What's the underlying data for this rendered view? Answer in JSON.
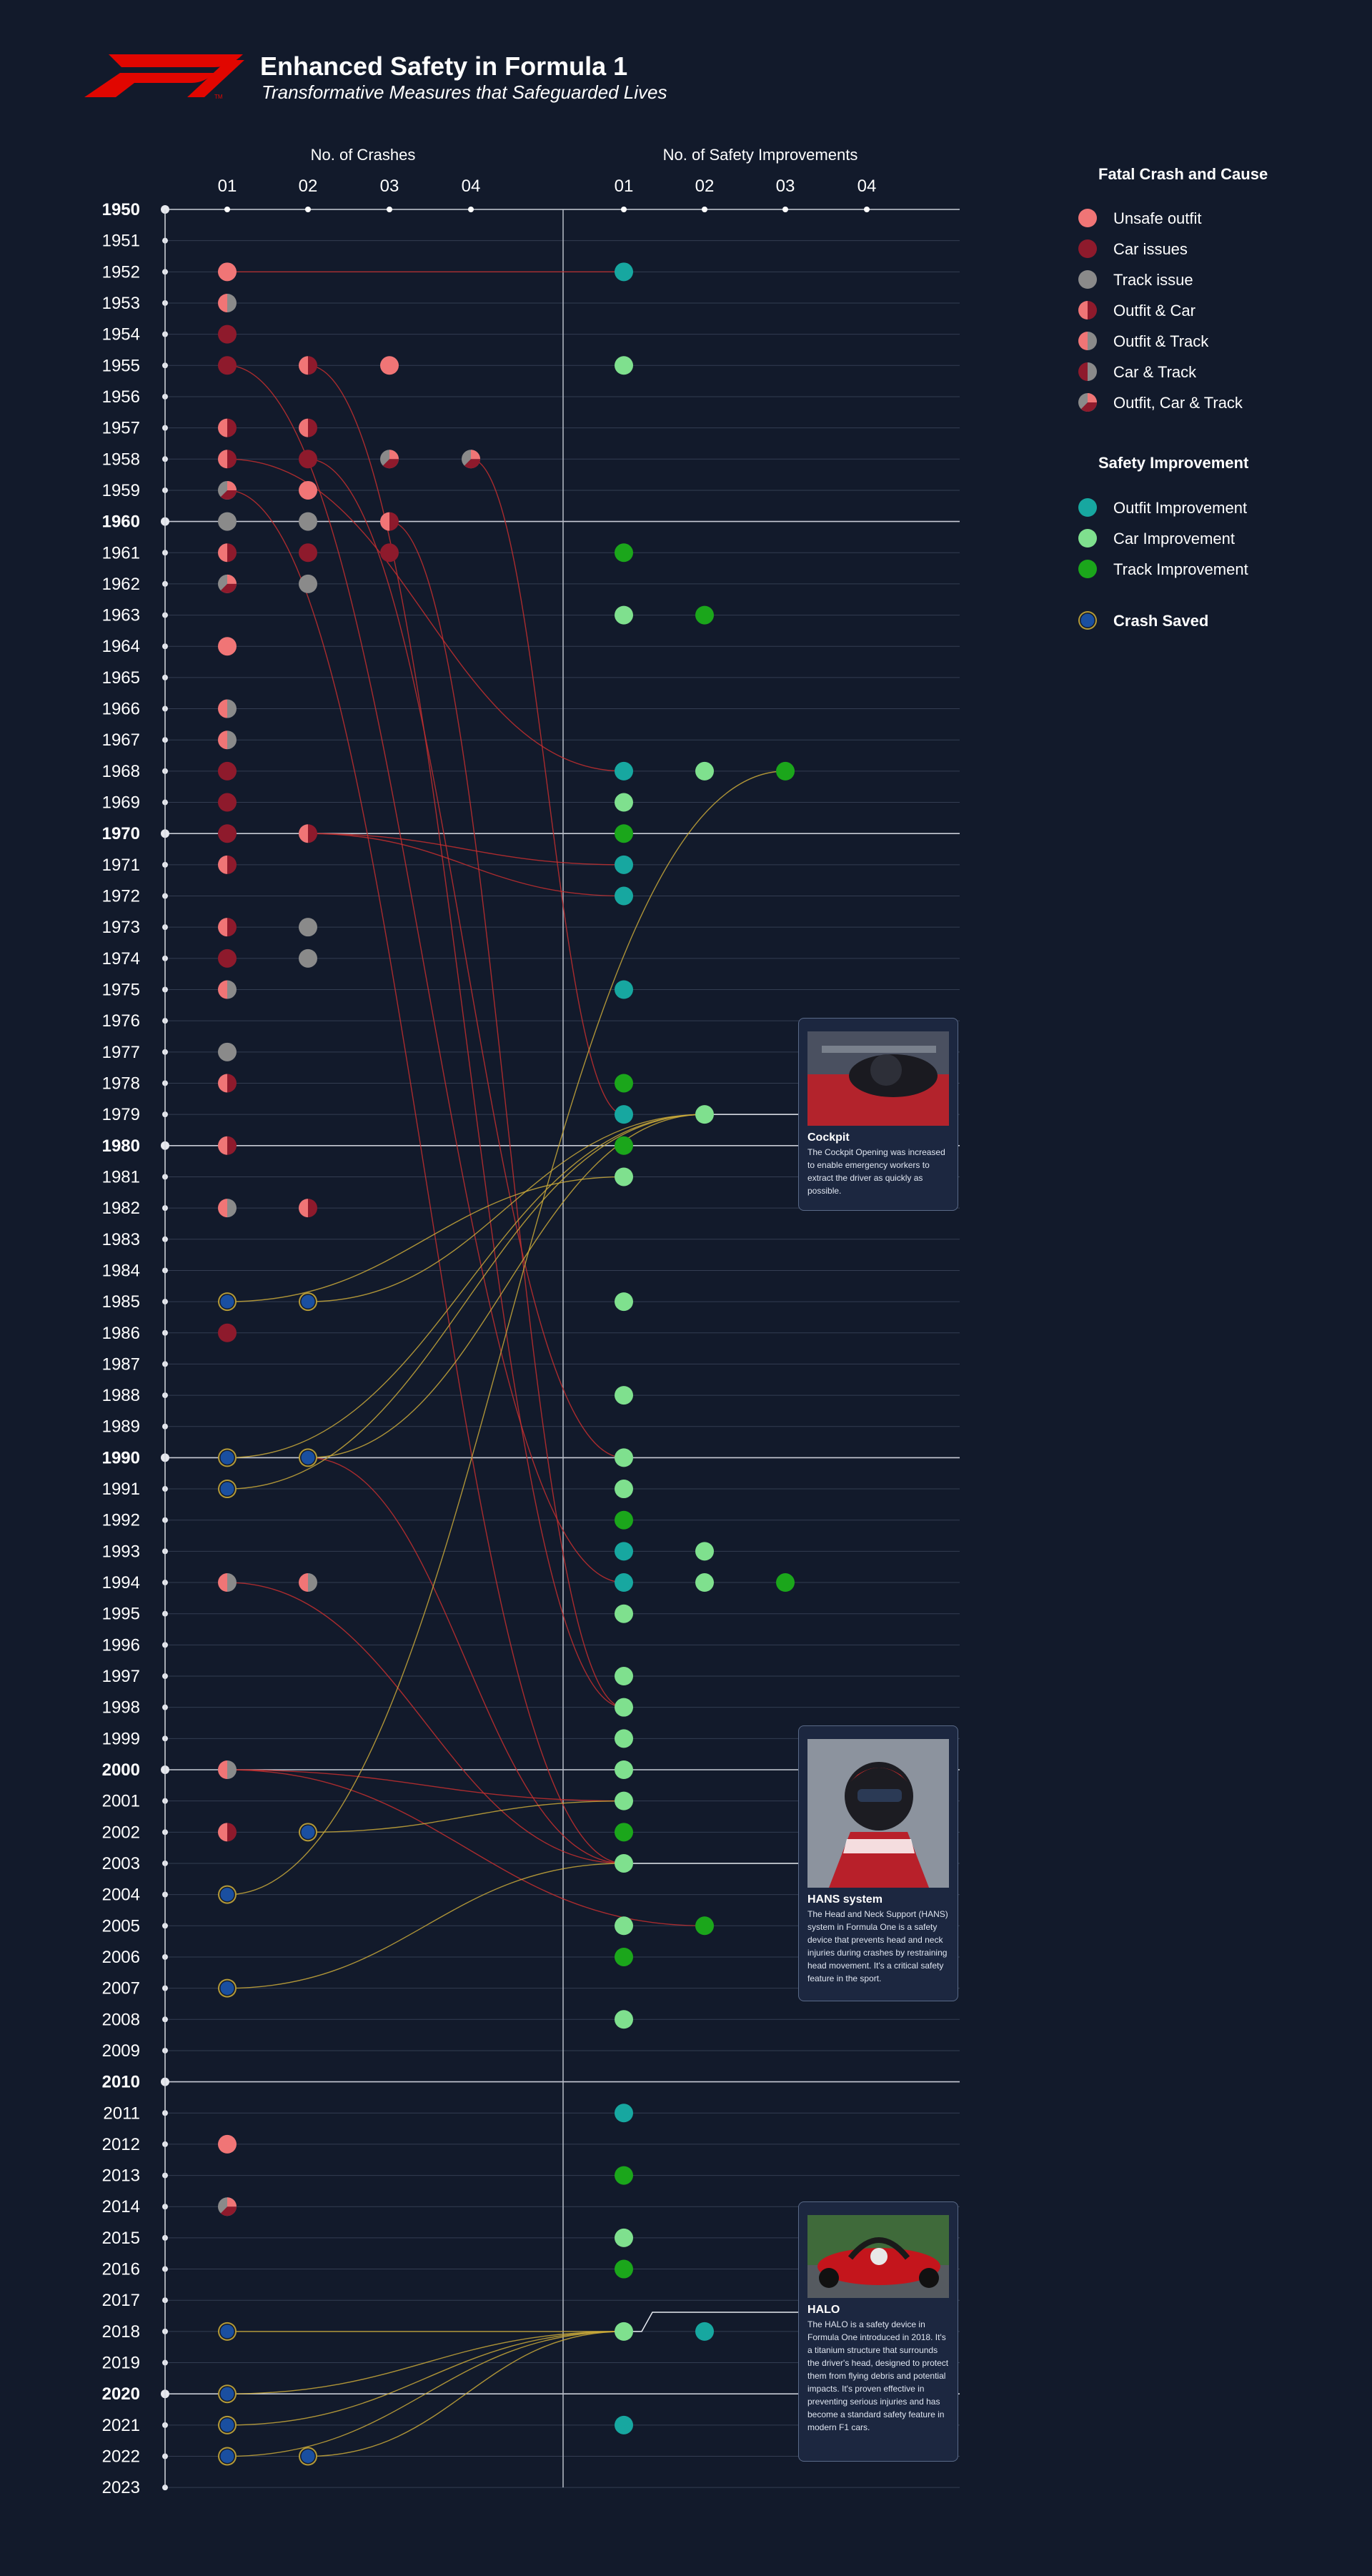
{
  "header": {
    "title": "Enhanced Safety in Formula 1",
    "subtitle": "Transformative Measures that Safeguarded Lives"
  },
  "columns": {
    "crashes_title": "No. of Crashes",
    "safety_title": "No. of Safety Improvements",
    "tick_labels": [
      "01",
      "02",
      "03",
      "04"
    ]
  },
  "legend": {
    "crash_title": "Fatal Crash and Cause",
    "crash_items": [
      {
        "key": "UO",
        "label": "Unsafe outfit"
      },
      {
        "key": "CI",
        "label": "Car issues"
      },
      {
        "key": "TI",
        "label": "Track issue"
      },
      {
        "key": "OC",
        "label": "Outfit & Car"
      },
      {
        "key": "OT",
        "label": "Outfit & Track"
      },
      {
        "key": "CT",
        "label": "Car & Track"
      },
      {
        "key": "OCT",
        "label": "Outfit, Car & Track"
      }
    ],
    "safety_title": "Safety Improvement",
    "safety_items": [
      {
        "key": "OI",
        "label": "Outfit Improvement"
      },
      {
        "key": "CAR",
        "label": "Car Improvement"
      },
      {
        "key": "TR",
        "label": "Track Improvement"
      }
    ],
    "saved_label": "Crash Saved"
  },
  "colors": {
    "background": "#121a2b",
    "unsafe_outfit": "#f07576",
    "car_issue": "#8e1a2c",
    "track_issue": "#8a8a8a",
    "outfit_improvement": "#17a7a0",
    "car_improvement": "#7fe08e",
    "track_improvement": "#1ba61b",
    "crash_saved_fill": "#1a4fa0",
    "crash_saved_ring": "#b49a38",
    "crash_link": "#c42f2f",
    "saved_link": "#c9a93a"
  },
  "cards": [
    {
      "title": "Cockpit",
      "text": "The Cockpit Opening was increased to enable emergency workers to extract the driver as quickly as possible."
    },
    {
      "title": "HANS system",
      "text": "The Head and Neck Support (HANS) system in Formula One is a safety device that prevents head and neck injuries during crashes by restraining head movement. It's a critical safety feature in the sport."
    },
    {
      "title": "HALO",
      "text": "The HALO is a safety device in Formula One introduced in 2018. It's a titanium structure that surrounds the driver's head, designed to protect them from flying debris and potential impacts. It's proven effective in preventing serious injuries and has become a standard safety feature in modern F1 cars."
    }
  ],
  "chart_data": {
    "type": "timeline-dot-matrix",
    "years": [
      1950,
      2023
    ],
    "decade_years": [
      1950,
      1960,
      1970,
      1980,
      1990,
      2000,
      2010,
      2020
    ],
    "crashes": [
      {
        "year": 1952,
        "types": [
          "UO"
        ]
      },
      {
        "year": 1953,
        "types": [
          "OT"
        ]
      },
      {
        "year": 1954,
        "types": [
          "CI"
        ]
      },
      {
        "year": 1955,
        "types": [
          "CI",
          "OC",
          "UO"
        ]
      },
      {
        "year": 1957,
        "types": [
          "OC",
          "OC"
        ]
      },
      {
        "year": 1958,
        "types": [
          "OC",
          "CI",
          "OCT",
          "OCT"
        ]
      },
      {
        "year": 1959,
        "types": [
          "OCT",
          "UO"
        ]
      },
      {
        "year": 1960,
        "types": [
          "TI",
          "TI",
          "OC"
        ]
      },
      {
        "year": 1961,
        "types": [
          "OC",
          "CI",
          "CI"
        ]
      },
      {
        "year": 1962,
        "types": [
          "OCT",
          "TI"
        ]
      },
      {
        "year": 1964,
        "types": [
          "UO"
        ]
      },
      {
        "year": 1966,
        "types": [
          "OT"
        ]
      },
      {
        "year": 1967,
        "types": [
          "OT"
        ]
      },
      {
        "year": 1968,
        "types": [
          "CI"
        ]
      },
      {
        "year": 1969,
        "types": [
          "CI"
        ]
      },
      {
        "year": 1970,
        "types": [
          "CI",
          "OC"
        ]
      },
      {
        "year": 1971,
        "types": [
          "OC"
        ]
      },
      {
        "year": 1973,
        "types": [
          "OC",
          "TI"
        ]
      },
      {
        "year": 1974,
        "types": [
          "CI",
          "TI"
        ]
      },
      {
        "year": 1975,
        "types": [
          "OT"
        ]
      },
      {
        "year": 1977,
        "types": [
          "TI"
        ]
      },
      {
        "year": 1978,
        "types": [
          "OC"
        ]
      },
      {
        "year": 1980,
        "types": [
          "OC"
        ]
      },
      {
        "year": 1982,
        "types": [
          "OT",
          "OC"
        ]
      },
      {
        "year": 1985,
        "types": [
          "SAVED",
          "SAVED"
        ]
      },
      {
        "year": 1986,
        "types": [
          "CI"
        ]
      },
      {
        "year": 1990,
        "types": [
          "SAVED",
          "SAVED"
        ]
      },
      {
        "year": 1991,
        "types": [
          "SAVED"
        ]
      },
      {
        "year": 1994,
        "types": [
          "OT",
          "OT"
        ]
      },
      {
        "year": 2000,
        "types": [
          "OT"
        ]
      },
      {
        "year": 2002,
        "types": [
          "OC",
          "SAVED"
        ]
      },
      {
        "year": 2004,
        "types": [
          "SAVED"
        ]
      },
      {
        "year": 2007,
        "types": [
          "SAVED"
        ]
      },
      {
        "year": 2012,
        "types": [
          "UO"
        ]
      },
      {
        "year": 2014,
        "types": [
          "OCT"
        ]
      },
      {
        "year": 2018,
        "types": [
          "SAVED"
        ]
      },
      {
        "year": 2020,
        "types": [
          "SAVED"
        ]
      },
      {
        "year": 2021,
        "types": [
          "SAVED"
        ]
      },
      {
        "year": 2022,
        "types": [
          "SAVED",
          "SAVED"
        ]
      }
    ],
    "improvements": [
      {
        "year": 1952,
        "types": [
          "OI"
        ]
      },
      {
        "year": 1955,
        "types": [
          "CAR"
        ]
      },
      {
        "year": 1961,
        "types": [
          "TR"
        ]
      },
      {
        "year": 1963,
        "types": [
          "CAR",
          "TR"
        ]
      },
      {
        "year": 1968,
        "types": [
          "OI",
          "CAR",
          "TR"
        ]
      },
      {
        "year": 1969,
        "types": [
          "CAR"
        ]
      },
      {
        "year": 1970,
        "types": [
          "TR"
        ]
      },
      {
        "year": 1971,
        "types": [
          "OI"
        ]
      },
      {
        "year": 1972,
        "types": [
          "OI"
        ]
      },
      {
        "year": 1975,
        "types": [
          "OI"
        ]
      },
      {
        "year": 1978,
        "types": [
          "TR"
        ]
      },
      {
        "year": 1979,
        "types": [
          "OI",
          "CAR"
        ]
      },
      {
        "year": 1980,
        "types": [
          "TR"
        ]
      },
      {
        "year": 1981,
        "types": [
          "CAR"
        ]
      },
      {
        "year": 1985,
        "types": [
          "CAR"
        ]
      },
      {
        "year": 1988,
        "types": [
          "CAR"
        ]
      },
      {
        "year": 1990,
        "types": [
          "CAR"
        ]
      },
      {
        "year": 1991,
        "types": [
          "CAR"
        ]
      },
      {
        "year": 1992,
        "types": [
          "TR"
        ]
      },
      {
        "year": 1993,
        "types": [
          "OI",
          "CAR"
        ]
      },
      {
        "year": 1994,
        "types": [
          "OI",
          "CAR",
          "TR"
        ]
      },
      {
        "year": 1995,
        "types": [
          "CAR"
        ]
      },
      {
        "year": 1997,
        "types": [
          "CAR"
        ]
      },
      {
        "year": 1998,
        "types": [
          "CAR"
        ]
      },
      {
        "year": 1999,
        "types": [
          "CAR"
        ]
      },
      {
        "year": 2000,
        "types": [
          "CAR"
        ]
      },
      {
        "year": 2001,
        "types": [
          "CAR"
        ]
      },
      {
        "year": 2002,
        "types": [
          "TR"
        ]
      },
      {
        "year": 2003,
        "types": [
          "CAR"
        ]
      },
      {
        "year": 2005,
        "types": [
          "CAR",
          "TR"
        ]
      },
      {
        "year": 2006,
        "types": [
          "TR"
        ]
      },
      {
        "year": 2008,
        "types": [
          "CAR"
        ]
      },
      {
        "year": 2011,
        "types": [
          "OI"
        ]
      },
      {
        "year": 2013,
        "types": [
          "TR"
        ]
      },
      {
        "year": 2015,
        "types": [
          "CAR"
        ]
      },
      {
        "year": 2016,
        "types": [
          "TR"
        ]
      },
      {
        "year": 2018,
        "types": [
          "CAR",
          "OI"
        ]
      },
      {
        "year": 2021,
        "types": [
          "OI"
        ]
      }
    ],
    "links": [
      {
        "from": [
          1952,
          1
        ],
        "to": [
          1952,
          1
        ],
        "kind": "crash"
      },
      {
        "from": [
          1955,
          1
        ],
        "to": [
          1994,
          1
        ],
        "kind": "crash"
      },
      {
        "from": [
          1955,
          2
        ],
        "to": [
          1998,
          1
        ],
        "kind": "crash"
      },
      {
        "from": [
          1958,
          1
        ],
        "to": [
          1968,
          1
        ],
        "kind": "crash"
      },
      {
        "from": [
          1958,
          2
        ],
        "to": [
          1990,
          1
        ],
        "kind": "crash"
      },
      {
        "from": [
          1958,
          4
        ],
        "to": [
          1979,
          1
        ],
        "kind": "crash"
      },
      {
        "from": [
          1959,
          1
        ],
        "to": [
          2003,
          1
        ],
        "kind": "crash"
      },
      {
        "from": [
          1960,
          3
        ],
        "to": [
          1998,
          1
        ],
        "kind": "crash"
      },
      {
        "from": [
          1970,
          2
        ],
        "to": [
          1972,
          1
        ],
        "kind": "crash"
      },
      {
        "from": [
          1970,
          2
        ],
        "to": [
          1971,
          1
        ],
        "kind": "crash"
      },
      {
        "from": [
          1990,
          2
        ],
        "to": [
          2003,
          1
        ],
        "kind": "crash"
      },
      {
        "from": [
          1994,
          1
        ],
        "to": [
          2003,
          1
        ],
        "kind": "crash"
      },
      {
        "from": [
          2000,
          1
        ],
        "to": [
          2005,
          2
        ],
        "kind": "crash"
      },
      {
        "from": [
          2000,
          1
        ],
        "to": [
          2001,
          1
        ],
        "kind": "crash"
      },
      {
        "from": [
          1985,
          1
        ],
        "to": [
          1981,
          1
        ],
        "kind": "saved"
      },
      {
        "from": [
          1985,
          2
        ],
        "to": [
          1979,
          2
        ],
        "kind": "saved"
      },
      {
        "from": [
          1990,
          1
        ],
        "to": [
          1979,
          2
        ],
        "kind": "saved"
      },
      {
        "from": [
          1990,
          2
        ],
        "to": [
          1979,
          2
        ],
        "kind": "saved"
      },
      {
        "from": [
          1991,
          1
        ],
        "to": [
          1979,
          2
        ],
        "kind": "saved"
      },
      {
        "from": [
          2002,
          2
        ],
        "to": [
          2001,
          1
        ],
        "kind": "saved"
      },
      {
        "from": [
          2004,
          1
        ],
        "to": [
          1968,
          3
        ],
        "kind": "saved"
      },
      {
        "from": [
          2007,
          1
        ],
        "to": [
          2003,
          1
        ],
        "kind": "saved"
      },
      {
        "from": [
          2018,
          1
        ],
        "to": [
          2018,
          1
        ],
        "kind": "saved"
      },
      {
        "from": [
          2020,
          1
        ],
        "to": [
          2018,
          1
        ],
        "kind": "saved"
      },
      {
        "from": [
          2021,
          1
        ],
        "to": [
          2018,
          1
        ],
        "kind": "saved"
      },
      {
        "from": [
          2022,
          1
        ],
        "to": [
          2018,
          1
        ],
        "kind": "saved"
      },
      {
        "from": [
          2022,
          2
        ],
        "to": [
          2018,
          1
        ],
        "kind": "saved"
      }
    ],
    "highlights": [
      {
        "year": 1979,
        "col": 2,
        "card": 0
      },
      {
        "year": 2003,
        "col": 1,
        "card": 1
      },
      {
        "year": 2018,
        "col": 1,
        "card": 2
      }
    ]
  }
}
